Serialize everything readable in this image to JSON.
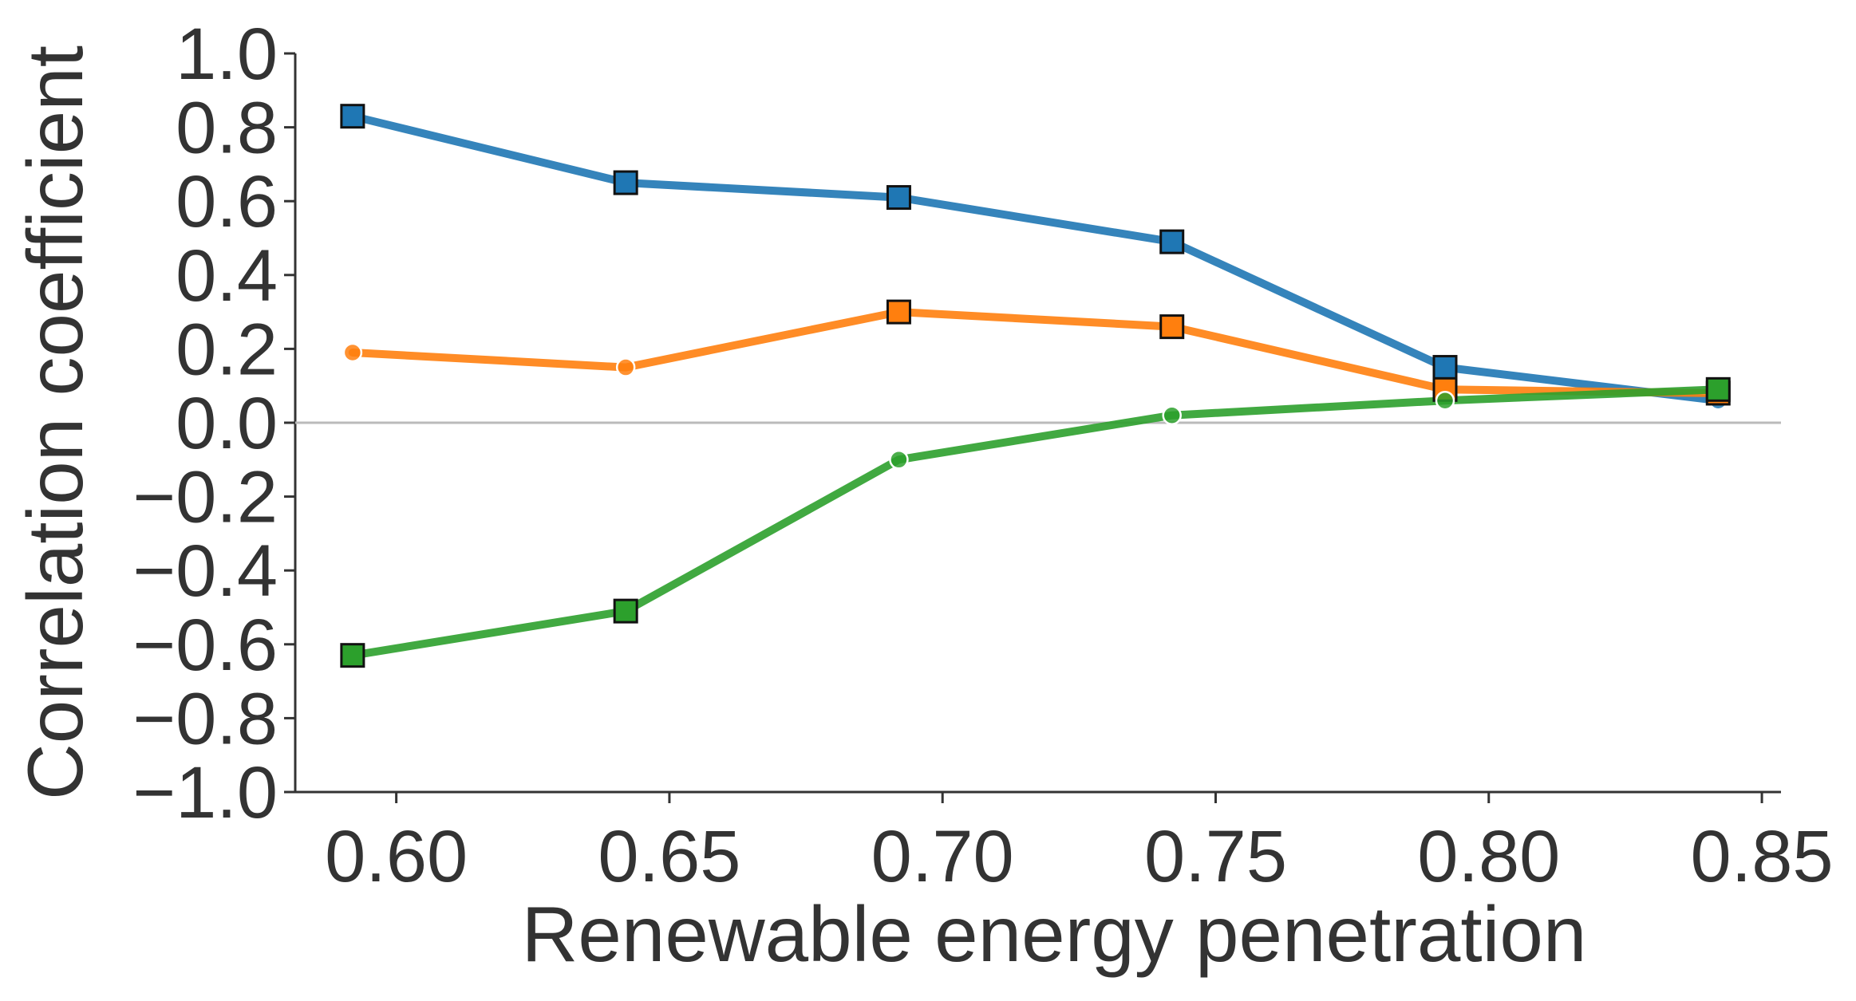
{
  "chart_data": {
    "type": "line",
    "title": "",
    "xlabel": "Renewable energy penetration",
    "ylabel": "Correlation coefficient",
    "xlim": [
      0.5815,
      0.8535
    ],
    "ylim": [
      -1.0,
      1.0
    ],
    "x_ticks": [
      0.6,
      0.65,
      0.7,
      0.75,
      0.8,
      0.85
    ],
    "x_tick_labels": [
      "0.60",
      "0.65",
      "0.70",
      "0.75",
      "0.80",
      "0.85"
    ],
    "y_ticks": [
      -1.0,
      -0.8,
      -0.6,
      -0.4,
      -0.2,
      0.0,
      0.2,
      0.4,
      0.6,
      0.8,
      1.0
    ],
    "y_tick_labels": [
      "−1.0",
      "−0.8",
      "−0.6",
      "−0.4",
      "−0.2",
      "0.0",
      "0.2",
      "0.4",
      "0.6",
      "0.8",
      "1.0"
    ],
    "grid": false,
    "legend": "none",
    "reference_line": {
      "y": 0.0,
      "color": "#bbbbbb"
    },
    "x": [
      0.592,
      0.642,
      0.692,
      0.742,
      0.792,
      0.842
    ],
    "series": [
      {
        "color": "#1f77b4",
        "values": [
          0.83,
          0.65,
          0.61,
          0.49,
          0.15,
          0.06
        ],
        "markers": [
          "square",
          "square",
          "square",
          "square",
          "square",
          "circle"
        ]
      },
      {
        "color": "#ff7f0e",
        "values": [
          0.19,
          0.15,
          0.3,
          0.26,
          0.09,
          0.08
        ],
        "markers": [
          "circle",
          "circle",
          "square",
          "square",
          "square",
          "square"
        ]
      },
      {
        "color": "#2ca02c",
        "values": [
          -0.63,
          -0.51,
          -0.1,
          0.02,
          0.06,
          0.09
        ],
        "markers": [
          "square",
          "square",
          "circle",
          "circle",
          "circle",
          "square"
        ]
      }
    ]
  }
}
